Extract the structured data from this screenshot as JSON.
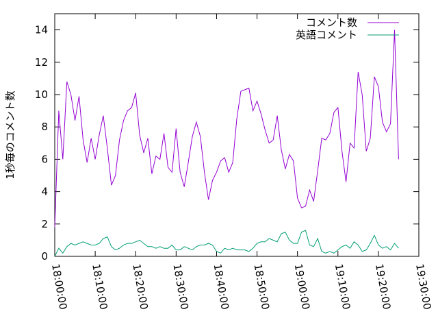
{
  "chart_data": {
    "type": "line",
    "y_label": "1秒毎のコメント数",
    "x": [
      "18:00:00",
      "18:01:00",
      "18:02:00",
      "18:03:00",
      "18:04:00",
      "18:05:00",
      "18:06:00",
      "18:07:00",
      "18:08:00",
      "18:09:00",
      "18:10:00",
      "18:11:00",
      "18:12:00",
      "18:13:00",
      "18:14:00",
      "18:15:00",
      "18:16:00",
      "18:17:00",
      "18:18:00",
      "18:19:00",
      "18:20:00",
      "18:21:00",
      "18:22:00",
      "18:23:00",
      "18:24:00",
      "18:25:00",
      "18:26:00",
      "18:27:00",
      "18:28:00",
      "18:29:00",
      "18:30:00",
      "18:31:00",
      "18:32:00",
      "18:33:00",
      "18:34:00",
      "18:35:00",
      "18:36:00",
      "18:37:00",
      "18:38:00",
      "18:39:00",
      "18:40:00",
      "18:41:00",
      "18:42:00",
      "18:43:00",
      "18:44:00",
      "18:45:00",
      "18:46:00",
      "18:47:00",
      "18:48:00",
      "18:49:00",
      "18:50:00",
      "18:51:00",
      "18:52:00",
      "18:53:00",
      "18:54:00",
      "18:55:00",
      "18:56:00",
      "18:57:00",
      "18:58:00",
      "18:59:00",
      "19:00:00",
      "19:01:00",
      "19:02:00",
      "19:03:00",
      "19:04:00",
      "19:05:00",
      "19:06:00",
      "19:07:00",
      "19:08:00",
      "19:09:00",
      "19:10:00",
      "19:11:00",
      "19:12:00",
      "19:13:00",
      "19:14:00",
      "19:15:00",
      "19:16:00",
      "19:17:00",
      "19:18:00",
      "19:19:00",
      "19:20:00",
      "19:21:00",
      "19:22:00",
      "19:23:00",
      "19:24:00",
      "19:25:00"
    ],
    "series": [
      {
        "name": "コメント数",
        "color": "#9400d3",
        "values": [
          1.8,
          9.0,
          6.0,
          10.8,
          10.0,
          8.4,
          9.9,
          7.2,
          5.8,
          7.3,
          6.0,
          7.5,
          8.7,
          6.7,
          4.4,
          5.0,
          7.2,
          8.4,
          9.0,
          9.2,
          10.1,
          7.5,
          6.4,
          7.3,
          5.1,
          6.2,
          6.0,
          7.6,
          5.5,
          5.2,
          7.9,
          5.2,
          4.3,
          5.8,
          7.4,
          8.3,
          7.4,
          5.2,
          3.5,
          4.7,
          5.2,
          5.9,
          6.1,
          5.2,
          5.8,
          8.5,
          10.2,
          10.3,
          10.4,
          9.0,
          9.6,
          8.8,
          7.8,
          7.0,
          7.2,
          8.7,
          6.6,
          5.4,
          6.3,
          5.9,
          3.6,
          3.0,
          3.1,
          4.1,
          3.4,
          5.3,
          7.3,
          7.2,
          7.6,
          8.9,
          9.2,
          6.5,
          4.6,
          7.0,
          6.7,
          11.4,
          10.0,
          6.5,
          7.3,
          11.1,
          10.5,
          8.3,
          7.7,
          8.2,
          14.0,
          6.0
        ]
      },
      {
        "name": "英語コメント",
        "color": "#009e73",
        "values": [
          0,
          0.5,
          0.2,
          0.6,
          0.8,
          0.7,
          0.8,
          0.9,
          0.8,
          0.7,
          0.7,
          0.8,
          1.1,
          1.2,
          0.6,
          0.4,
          0.5,
          0.7,
          0.8,
          0.8,
          0.9,
          1.0,
          0.8,
          0.6,
          0.6,
          0.5,
          0.6,
          0.5,
          0.5,
          0.7,
          0.4,
          0.4,
          0.6,
          0.5,
          0.4,
          0.6,
          0.7,
          0.7,
          0.8,
          0.7,
          0.3,
          0.2,
          0.5,
          0.4,
          0.5,
          0.4,
          0.4,
          0.4,
          0.3,
          0.5,
          0.8,
          0.9,
          0.9,
          1.1,
          1.0,
          0.9,
          1.4,
          1.5,
          1.0,
          0.8,
          0.8,
          1.5,
          1.6,
          0.7,
          0.6,
          1.1,
          0.3,
          0.2,
          0.3,
          0.2,
          0.4,
          0.6,
          0.7,
          0.5,
          0.9,
          0.7,
          0.3,
          0.4,
          0.8,
          1.3,
          0.7,
          0.5,
          0.6,
          0.4,
          0.8,
          0.5
        ]
      }
    ],
    "xlim": [
      "18:00:00",
      "19:30:00"
    ],
    "xticks": [
      "18:00:00",
      "18:10:00",
      "18:20:00",
      "18:30:00",
      "18:40:00",
      "18:50:00",
      "19:00:00",
      "19:10:00",
      "19:20:00",
      "19:30:00"
    ],
    "ylim": [
      0,
      15
    ],
    "yticks": [
      0,
      2,
      4,
      6,
      8,
      10,
      12,
      14
    ],
    "legend": "top-right"
  }
}
